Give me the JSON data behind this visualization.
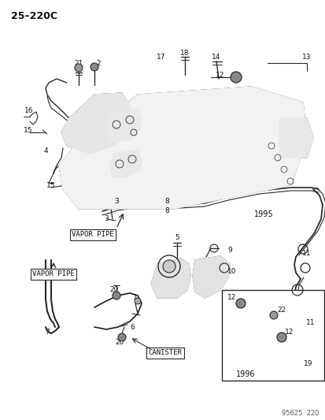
{
  "title": "25–220C",
  "background_color": "#ffffff",
  "line_color": "#2a2a2a",
  "text_color": "#111111",
  "fig_width": 4.14,
  "fig_height": 5.33,
  "dpi": 100,
  "footer_text": "95625  220",
  "year_1995": "1995",
  "year_1996": "1996",
  "vapor_pipe_label_top": "VAPOR PIPE",
  "vapor_pipe_label_bot": "VAPOR PIPE",
  "canister_label": "CANISTER"
}
